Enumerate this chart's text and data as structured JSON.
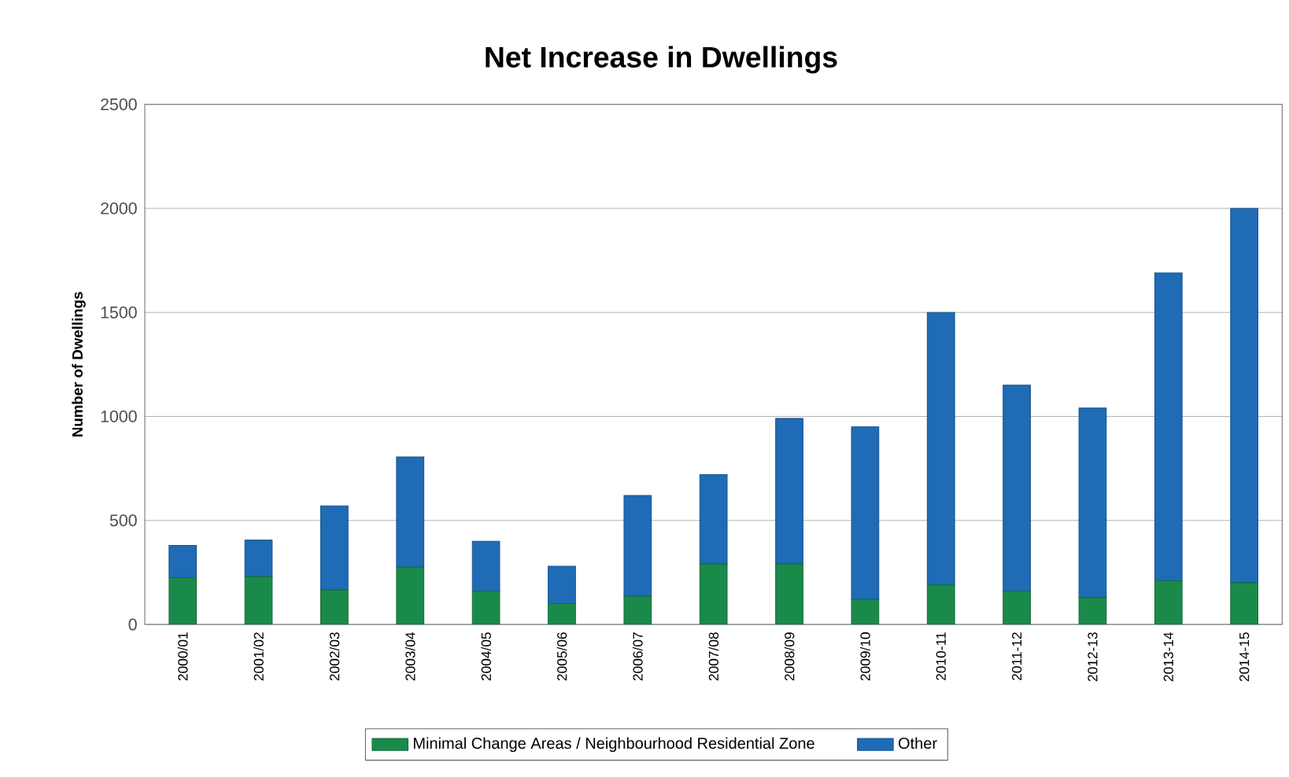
{
  "chart_data": {
    "type": "bar",
    "stacked": true,
    "title": "Net Increase in Dwellings",
    "ylabel": "Number of Dwellings",
    "categories": [
      "2000/01",
      "2001/02",
      "2002/03",
      "2003/04",
      "2004/05",
      "2005/06",
      "2006/07",
      "2007/08",
      "2008/09",
      "2009/10",
      "2010-11",
      "2011-12",
      "2012-13",
      "2013-14",
      "2014-15"
    ],
    "series": [
      {
        "name": "Minimal Change Areas / Neighbourhood Residential Zone",
        "color": "#1a8a4a",
        "values": [
          225,
          230,
          165,
          275,
          160,
          100,
          135,
          290,
          290,
          120,
          190,
          160,
          130,
          210,
          200
        ]
      },
      {
        "name": "Other",
        "color": "#1f6bb5",
        "values": [
          155,
          175,
          405,
          530,
          240,
          180,
          485,
          430,
          700,
          830,
          1310,
          990,
          910,
          1480,
          1800
        ]
      }
    ],
    "ylim": [
      0,
      2500
    ],
    "yticks": [
      0,
      500,
      1000,
      1500,
      2000,
      2500
    ],
    "grid": "y",
    "legend": "bottom"
  }
}
